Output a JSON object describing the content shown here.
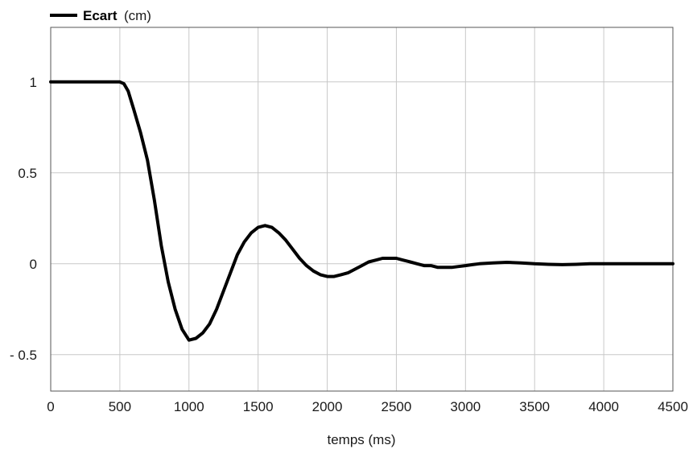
{
  "chart_data": {
    "type": "line",
    "xlabel": "temps (ms)",
    "ylabel": "",
    "xlim": [
      0,
      4500
    ],
    "ylim": [
      -0.7,
      1.3
    ],
    "xticks": [
      0,
      500,
      1000,
      1500,
      2000,
      2500,
      3000,
      3500,
      4000,
      4500
    ],
    "xtick_labels": [
      "0",
      "500",
      "1000",
      "1500",
      "2000",
      "2500",
      "3000",
      "3500",
      "4000",
      "4500"
    ],
    "yticks": [
      1,
      0.5,
      0,
      -0.5
    ],
    "ytick_labels": [
      "1",
      "0.5",
      "0",
      "- 0.5"
    ],
    "grid": true,
    "legend_position": "top-left",
    "legend": {
      "name": "Ecart",
      "unit": "(cm)"
    },
    "line_color": "#000000",
    "grid_color": "#c8c8c8",
    "series": [
      {
        "name": "Ecart",
        "x": [
          0,
          500,
          530,
          560,
          600,
          650,
          700,
          750,
          800,
          850,
          900,
          950,
          1000,
          1050,
          1100,
          1150,
          1200,
          1250,
          1300,
          1350,
          1400,
          1450,
          1500,
          1550,
          1600,
          1650,
          1700,
          1750,
          1800,
          1850,
          1900,
          1950,
          2000,
          2050,
          2100,
          2150,
          2200,
          2250,
          2300,
          2350,
          2400,
          2450,
          2500,
          2550,
          2600,
          2650,
          2700,
          2750,
          2800,
          2850,
          2900,
          2950,
          3000,
          3050,
          3100,
          3200,
          3300,
          3400,
          3500,
          3600,
          3700,
          3800,
          3900,
          4000,
          4100,
          4200,
          4300,
          4400,
          4500
        ],
        "values": [
          1.0,
          1.0,
          0.99,
          0.95,
          0.85,
          0.72,
          0.57,
          0.35,
          0.1,
          -0.1,
          -0.25,
          -0.36,
          -0.42,
          -0.41,
          -0.38,
          -0.33,
          -0.25,
          -0.15,
          -0.05,
          0.05,
          0.12,
          0.17,
          0.2,
          0.21,
          0.2,
          0.17,
          0.13,
          0.08,
          0.03,
          -0.01,
          -0.04,
          -0.06,
          -0.07,
          -0.07,
          -0.06,
          -0.05,
          -0.03,
          -0.01,
          0.01,
          0.02,
          0.03,
          0.03,
          0.03,
          0.02,
          0.01,
          0.0,
          -0.01,
          -0.01,
          -0.02,
          -0.02,
          -0.02,
          -0.015,
          -0.01,
          -0.005,
          0.0,
          0.005,
          0.008,
          0.005,
          0.0,
          -0.003,
          -0.005,
          -0.003,
          0.0,
          0.0,
          0.0,
          0.0,
          0.0,
          0.0,
          0.0
        ]
      }
    ]
  }
}
